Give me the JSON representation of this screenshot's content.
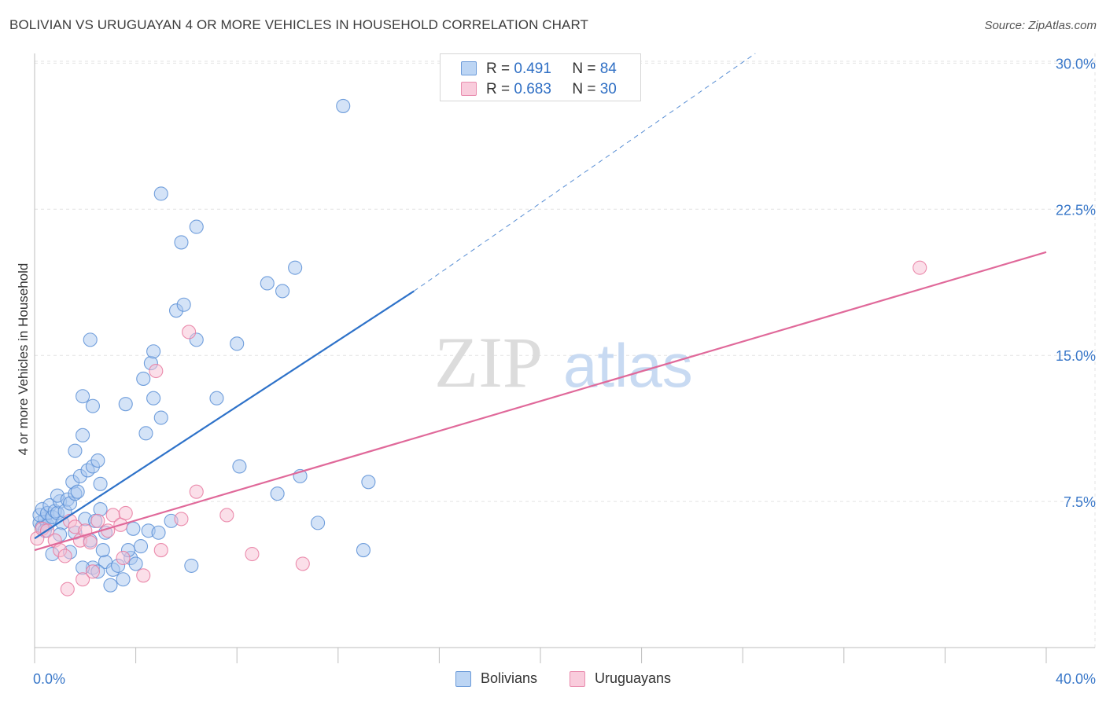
{
  "title": "BOLIVIAN VS URUGUAYAN 4 OR MORE VEHICLES IN HOUSEHOLD CORRELATION CHART",
  "source": "Source: ZipAtlas.com",
  "watermark": {
    "zip": "ZIP",
    "atlas": "atlas"
  },
  "legend": {
    "r_label": "R =",
    "n_label": "N =",
    "rows": [
      {
        "name": "Bolivians",
        "r": "0.491",
        "n": "84",
        "color": "#a9c8f0",
        "edge": "#5b8fd6"
      },
      {
        "name": "Uruguayans",
        "r": "0.683",
        "n": "30",
        "color": "#f7bfd3",
        "edge": "#e77aa0"
      }
    ]
  },
  "chart_data": {
    "type": "scatter",
    "title": "BOLIVIAN VS URUGUAYAN 4 OR MORE VEHICLES IN HOUSEHOLD CORRELATION CHART",
    "xlabel": "",
    "ylabel": "4 or more Vehicles in Household",
    "xlim": [
      0,
      40
    ],
    "ylim": [
      0,
      30.5
    ],
    "x_tick_labels": [
      "0.0%",
      "40.0%"
    ],
    "y_ticks": [
      7.5,
      15.0,
      22.5,
      30.0
    ],
    "y_tick_labels": [
      "7.5%",
      "15.0%",
      "22.5%",
      "30.0%"
    ],
    "grid": true,
    "series": [
      {
        "name": "Bolivians",
        "color": "#a9c8f0",
        "edge": "#5b8fd6",
        "trend": {
          "color": "#2e72c9",
          "x0": 0,
          "y0": 5.6,
          "x1": 15,
          "y1": 18.3,
          "dash_x1": 28.5,
          "dash_y1": 30.5
        },
        "points": [
          [
            0.2,
            6.4
          ],
          [
            0.3,
            6.2
          ],
          [
            0.4,
            6.6
          ],
          [
            0.5,
            6.3
          ],
          [
            0.6,
            6.5
          ],
          [
            0.2,
            6.8
          ],
          [
            0.3,
            7.1
          ],
          [
            0.5,
            6.9
          ],
          [
            0.6,
            7.3
          ],
          [
            0.7,
            6.7
          ],
          [
            0.8,
            7.0
          ],
          [
            0.9,
            6.9
          ],
          [
            1.0,
            7.5
          ],
          [
            0.9,
            7.8
          ],
          [
            1.1,
            6.4
          ],
          [
            1.2,
            7.0
          ],
          [
            1.3,
            7.6
          ],
          [
            1.4,
            7.4
          ],
          [
            1.5,
            8.5
          ],
          [
            1.6,
            7.9
          ],
          [
            1.8,
            8.8
          ],
          [
            1.7,
            8.0
          ],
          [
            1.9,
            10.9
          ],
          [
            2.1,
            9.1
          ],
          [
            2.3,
            9.3
          ],
          [
            2.5,
            9.6
          ],
          [
            2.6,
            8.4
          ],
          [
            2.0,
            6.6
          ],
          [
            2.4,
            6.5
          ],
          [
            2.8,
            5.9
          ],
          [
            1.6,
            10.1
          ],
          [
            2.3,
            12.4
          ],
          [
            2.2,
            15.8
          ],
          [
            1.9,
            12.9
          ],
          [
            2.6,
            7.1
          ],
          [
            2.8,
            4.4
          ],
          [
            2.3,
            4.1
          ],
          [
            3.0,
            3.2
          ],
          [
            2.5,
            3.9
          ],
          [
            2.7,
            5.0
          ],
          [
            3.1,
            4.0
          ],
          [
            3.5,
            3.5
          ],
          [
            3.8,
            4.6
          ],
          [
            4.2,
            5.2
          ],
          [
            4.5,
            6.0
          ],
          [
            3.9,
            6.1
          ],
          [
            4.4,
            11.0
          ],
          [
            3.6,
            12.5
          ],
          [
            4.3,
            13.8
          ],
          [
            4.7,
            12.8
          ],
          [
            5.0,
            11.8
          ],
          [
            4.6,
            14.6
          ],
          [
            5.8,
            20.8
          ],
          [
            6.4,
            21.6
          ],
          [
            5.6,
            17.3
          ],
          [
            6.4,
            15.8
          ],
          [
            7.2,
            12.8
          ],
          [
            8.0,
            15.6
          ],
          [
            9.2,
            18.7
          ],
          [
            9.8,
            18.3
          ],
          [
            10.5,
            8.8
          ],
          [
            11.2,
            6.4
          ],
          [
            13.0,
            5.0
          ],
          [
            12.2,
            27.8
          ],
          [
            10.3,
            19.5
          ],
          [
            5.0,
            23.3
          ],
          [
            4.7,
            15.2
          ],
          [
            5.9,
            17.6
          ],
          [
            1.6,
            5.9
          ],
          [
            2.2,
            5.5
          ],
          [
            0.4,
            6.0
          ],
          [
            0.7,
            4.8
          ],
          [
            1.0,
            5.8
          ],
          [
            1.4,
            4.9
          ],
          [
            1.9,
            4.1
          ],
          [
            3.3,
            4.2
          ],
          [
            3.7,
            5.0
          ],
          [
            4.0,
            4.3
          ],
          [
            4.9,
            5.9
          ],
          [
            5.4,
            6.5
          ],
          [
            6.2,
            4.2
          ],
          [
            8.1,
            9.3
          ],
          [
            9.6,
            7.9
          ],
          [
            13.2,
            8.5
          ]
        ]
      },
      {
        "name": "Uruguayans",
        "color": "#f7bfd3",
        "edge": "#e77aa0",
        "trend": {
          "color": "#e0699a",
          "x0": 0,
          "y0": 5.0,
          "x1": 40,
          "y1": 20.3
        },
        "points": [
          [
            0.1,
            5.6
          ],
          [
            0.3,
            6.1
          ],
          [
            0.5,
            6.0
          ],
          [
            0.8,
            5.5
          ],
          [
            1.0,
            5.0
          ],
          [
            1.2,
            4.7
          ],
          [
            1.4,
            6.5
          ],
          [
            1.6,
            6.2
          ],
          [
            1.8,
            5.5
          ],
          [
            2.0,
            6.0
          ],
          [
            2.2,
            5.4
          ],
          [
            2.5,
            6.5
          ],
          [
            2.9,
            6.0
          ],
          [
            3.1,
            6.8
          ],
          [
            3.4,
            6.3
          ],
          [
            3.6,
            6.9
          ],
          [
            1.3,
            3.0
          ],
          [
            1.9,
            3.5
          ],
          [
            2.3,
            3.9
          ],
          [
            3.5,
            4.6
          ],
          [
            4.3,
            3.7
          ],
          [
            5.0,
            5.0
          ],
          [
            5.8,
            6.6
          ],
          [
            6.4,
            8.0
          ],
          [
            7.6,
            6.8
          ],
          [
            8.6,
            4.8
          ],
          [
            10.6,
            4.3
          ],
          [
            4.8,
            14.2
          ],
          [
            6.1,
            16.2
          ],
          [
            35.0,
            19.5
          ]
        ]
      }
    ]
  }
}
